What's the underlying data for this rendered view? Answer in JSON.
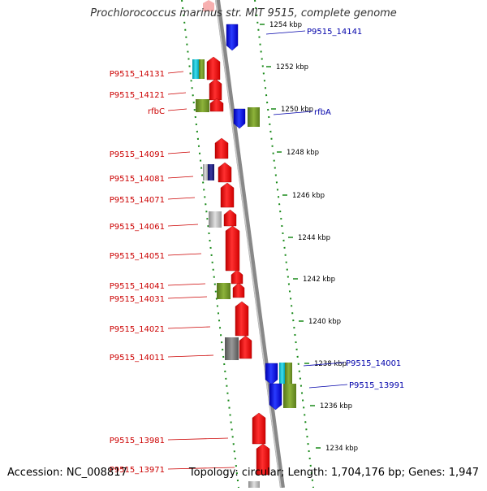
{
  "title": "Prochlorococcus marinus str. MIT 9515, complete genome",
  "footer": {
    "accession": "Accession: NC_008817",
    "topology": "Topology: circular; Length: 1,704,176 bp; Genes: 1,947"
  },
  "ruler_ticks": [
    "1254 kbp",
    "1252 kbp",
    "1250 kbp",
    "1248 kbp",
    "1246 kbp",
    "1244 kbp",
    "1242 kbp",
    "1240 kbp",
    "1238 kbp",
    "1236 kbp",
    "1234 kbp"
  ],
  "left_labels": [
    "P9515_14131",
    "P9515_14121",
    "rfbC",
    "P9515_14091",
    "P9515_14081",
    "P9515_14071",
    "P9515_14061",
    "P9515_14051",
    "P9515_14041",
    "P9515_14031",
    "P9515_14021",
    "P9515_14011",
    "P9515_13981",
    "P9515_13971"
  ],
  "right_labels": [
    "P9515_14141",
    "rfbA",
    "P9515_14001",
    "P9515_13991"
  ],
  "colors": {
    "reverse_gene": "#ff0000",
    "forward_gene": "#0000ee",
    "other_feature": "#6b8e23",
    "cyan_feature": "#00bcd4",
    "grey_feature": "#9e9e9e",
    "backbone": "#808080",
    "ruler": "#1a8a1a",
    "label_left": "#cc0000",
    "label_right": "#0000aa"
  }
}
